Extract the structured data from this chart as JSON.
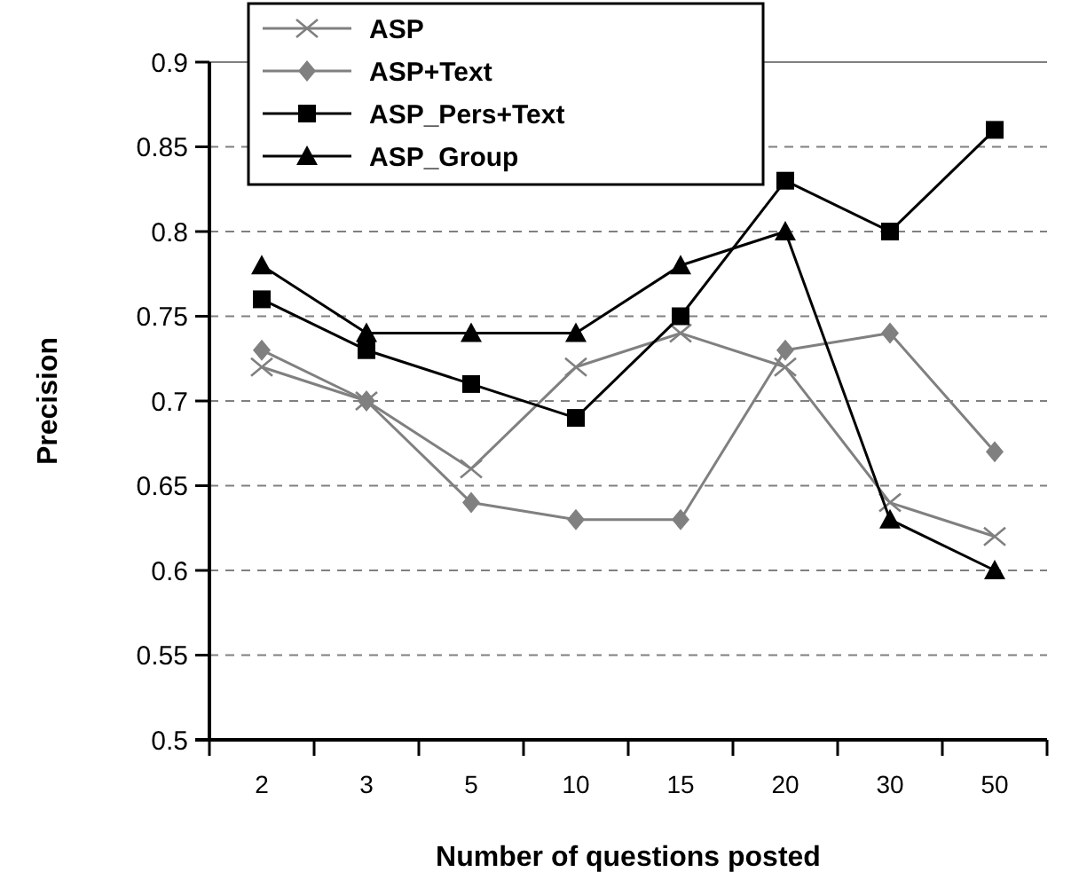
{
  "chart_data": {
    "type": "line",
    "xlabel": "Number of questions posted",
    "ylabel": "Precision",
    "categories": [
      "2",
      "3",
      "5",
      "10",
      "15",
      "20",
      "30",
      "50"
    ],
    "ylim": [
      0.5,
      0.9
    ],
    "yticks": [
      0.5,
      0.55,
      0.6,
      0.65,
      0.7,
      0.75,
      0.8,
      0.85,
      0.9
    ],
    "grid": "y",
    "legend": "top left",
    "series": [
      {
        "name": "ASP",
        "color": "#808080",
        "marker": "cross",
        "values": [
          0.72,
          0.7,
          0.66,
          0.72,
          0.74,
          0.72,
          0.64,
          0.62
        ]
      },
      {
        "name": "ASP+Text",
        "color": "#808080",
        "marker": "diamond",
        "values": [
          0.73,
          0.7,
          0.64,
          0.63,
          0.63,
          0.73,
          0.74,
          0.67
        ]
      },
      {
        "name": "ASP_Pers+Text",
        "color": "#000000",
        "marker": "square",
        "values": [
          0.76,
          0.73,
          0.71,
          0.69,
          0.75,
          0.83,
          0.8,
          0.86
        ]
      },
      {
        "name": "ASP_Group",
        "color": "#000000",
        "marker": "triangle",
        "values": [
          0.78,
          0.74,
          0.74,
          0.74,
          0.78,
          0.8,
          0.63,
          0.6
        ]
      }
    ]
  }
}
